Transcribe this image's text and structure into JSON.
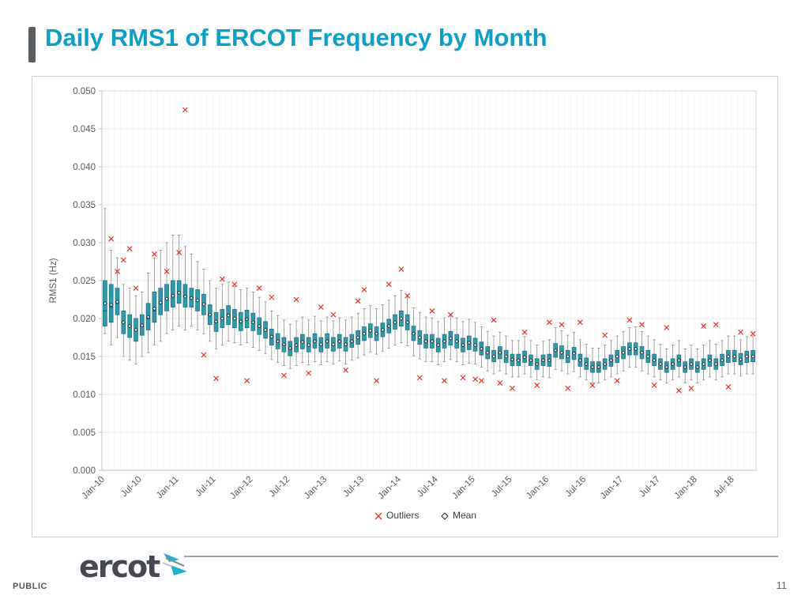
{
  "slide": {
    "title": "Daily RMS1 of ERCOT Frequency by Month",
    "footer_left": "PUBLIC",
    "page_number": "11",
    "logo_text": "ercot"
  },
  "colors": {
    "title": "#0d9fc6",
    "box_fill": "#2e9bae",
    "box_stroke": "#1f6f7d",
    "median": "#145c68",
    "whisker": "#8f8f8f",
    "outlier": "#e0352b",
    "grid": "#e5e5e5",
    "grid_vertical": "#f1f1f1",
    "axis": "#bfbfbf",
    "tick_text": "#595959",
    "mean_fill": "#ffffff",
    "mean_stroke": "#2b2b2b",
    "legend_text": "#404040"
  },
  "chart_data": {
    "type": "boxplot",
    "title": "",
    "xlabel": "",
    "ylabel": "RMS1 (Hz)",
    "ylim": [
      0,
      0.05
    ],
    "y_ticks": [
      "0.000",
      "0.005",
      "0.010",
      "0.015",
      "0.020",
      "0.025",
      "0.030",
      "0.035",
      "0.040",
      "0.045",
      "0.050"
    ],
    "x_tick_step": 6,
    "grid": true,
    "legend_position": "bottom-center",
    "legend": [
      {
        "label": "Outliers",
        "marker": "x"
      },
      {
        "label": "Mean",
        "marker": "diamond"
      }
    ],
    "months": [
      "Jan-10",
      "Feb-10",
      "Mar-10",
      "Apr-10",
      "May-10",
      "Jun-10",
      "Jul-10",
      "Aug-10",
      "Sep-10",
      "Oct-10",
      "Nov-10",
      "Dec-10",
      "Jan-11",
      "Feb-11",
      "Mar-11",
      "Apr-11",
      "May-11",
      "Jun-11",
      "Jul-11",
      "Aug-11",
      "Sep-11",
      "Oct-11",
      "Nov-11",
      "Dec-11",
      "Jan-12",
      "Feb-12",
      "Mar-12",
      "Apr-12",
      "May-12",
      "Jun-12",
      "Jul-12",
      "Aug-12",
      "Sep-12",
      "Oct-12",
      "Nov-12",
      "Dec-12",
      "Jan-13",
      "Feb-13",
      "Mar-13",
      "Apr-13",
      "May-13",
      "Jun-13",
      "Jul-13",
      "Aug-13",
      "Sep-13",
      "Oct-13",
      "Nov-13",
      "Dec-13",
      "Jan-14",
      "Feb-14",
      "Mar-14",
      "Apr-14",
      "May-14",
      "Jun-14",
      "Jul-14",
      "Aug-14",
      "Sep-14",
      "Oct-14",
      "Nov-14",
      "Dec-14",
      "Jan-15",
      "Feb-15",
      "Mar-15",
      "Apr-15",
      "May-15",
      "Jun-15",
      "Jul-15",
      "Aug-15",
      "Sep-15",
      "Oct-15",
      "Nov-15",
      "Dec-15",
      "Jan-16",
      "Feb-16",
      "Mar-16",
      "Apr-16",
      "May-16",
      "Jun-16",
      "Jul-16",
      "Aug-16",
      "Sep-16",
      "Oct-16",
      "Nov-16",
      "Dec-16",
      "Jan-17",
      "Feb-17",
      "Mar-17",
      "Apr-17",
      "May-17",
      "Jun-17",
      "Jul-17",
      "Aug-17",
      "Sep-17",
      "Oct-17",
      "Nov-17",
      "Dec-17",
      "Jan-18",
      "Feb-18",
      "Mar-18",
      "Apr-18",
      "May-18",
      "Jun-18",
      "Jul-18",
      "Aug-18",
      "Sep-18",
      "Oct-18"
    ],
    "box_format": [
      "low",
      "q1",
      "median",
      "q3",
      "high",
      "mean"
    ],
    "boxes": [
      [
        0.018,
        0.019,
        0.021,
        0.025,
        0.0345,
        0.022
      ],
      [
        0.0165,
        0.0195,
        0.0215,
        0.0245,
        0.029,
        0.0218
      ],
      [
        0.0175,
        0.0205,
        0.022,
        0.024,
        0.028,
        0.0222
      ],
      [
        0.015,
        0.018,
        0.0195,
        0.021,
        0.0245,
        0.0195
      ],
      [
        0.0145,
        0.0175,
        0.019,
        0.0205,
        0.024,
        0.019
      ],
      [
        0.014,
        0.017,
        0.0185,
        0.02,
        0.023,
        0.0185
      ],
      [
        0.015,
        0.0178,
        0.019,
        0.0205,
        0.0235,
        0.0191
      ],
      [
        0.0155,
        0.0185,
        0.02,
        0.022,
        0.026,
        0.0202
      ],
      [
        0.0165,
        0.0195,
        0.021,
        0.0235,
        0.028,
        0.0213
      ],
      [
        0.017,
        0.0205,
        0.022,
        0.024,
        0.029,
        0.0221
      ],
      [
        0.018,
        0.021,
        0.0225,
        0.0245,
        0.03,
        0.0226
      ],
      [
        0.0185,
        0.0215,
        0.023,
        0.025,
        0.031,
        0.023
      ],
      [
        0.019,
        0.022,
        0.0235,
        0.025,
        0.031,
        0.0234
      ],
      [
        0.0185,
        0.0215,
        0.023,
        0.0245,
        0.0295,
        0.0229
      ],
      [
        0.019,
        0.0215,
        0.0228,
        0.024,
        0.0285,
        0.0227
      ],
      [
        0.0185,
        0.021,
        0.0225,
        0.0238,
        0.0275,
        0.0224
      ],
      [
        0.018,
        0.0205,
        0.022,
        0.0232,
        0.0265,
        0.0219
      ],
      [
        0.017,
        0.0192,
        0.0205,
        0.0218,
        0.025,
        0.0205
      ],
      [
        0.016,
        0.0183,
        0.0195,
        0.0208,
        0.024,
        0.0196
      ],
      [
        0.0165,
        0.0188,
        0.02,
        0.0212,
        0.0245,
        0.02
      ],
      [
        0.017,
        0.0192,
        0.0205,
        0.0217,
        0.0248,
        0.0204
      ],
      [
        0.0168,
        0.0188,
        0.02,
        0.0212,
        0.0242,
        0.02
      ],
      [
        0.0165,
        0.0184,
        0.0196,
        0.0208,
        0.0238,
        0.0196
      ],
      [
        0.0168,
        0.0188,
        0.02,
        0.0211,
        0.024,
        0.0199
      ],
      [
        0.0162,
        0.0184,
        0.0195,
        0.0207,
        0.0235,
        0.0195
      ],
      [
        0.0158,
        0.0179,
        0.019,
        0.0201,
        0.0228,
        0.019
      ],
      [
        0.0154,
        0.0174,
        0.0185,
        0.0196,
        0.0222,
        0.0185
      ],
      [
        0.0146,
        0.0165,
        0.0175,
        0.0186,
        0.021,
        0.0176
      ],
      [
        0.0142,
        0.016,
        0.017,
        0.018,
        0.0204,
        0.017
      ],
      [
        0.0138,
        0.0156,
        0.0165,
        0.0175,
        0.0198,
        0.0166
      ],
      [
        0.0134,
        0.0151,
        0.016,
        0.017,
        0.0192,
        0.0161
      ],
      [
        0.0138,
        0.0156,
        0.0165,
        0.0175,
        0.0197,
        0.0165
      ],
      [
        0.0142,
        0.016,
        0.017,
        0.0179,
        0.0202,
        0.0169
      ],
      [
        0.0139,
        0.0156,
        0.0165,
        0.0175,
        0.0198,
        0.0165
      ],
      [
        0.0143,
        0.0161,
        0.017,
        0.018,
        0.0203,
        0.017
      ],
      [
        0.0139,
        0.0156,
        0.0165,
        0.0175,
        0.0197,
        0.0166
      ],
      [
        0.0143,
        0.0161,
        0.017,
        0.018,
        0.0202,
        0.017
      ],
      [
        0.014,
        0.0157,
        0.0165,
        0.0175,
        0.0197,
        0.0166
      ],
      [
        0.0144,
        0.0161,
        0.017,
        0.0179,
        0.0201,
        0.017
      ],
      [
        0.014,
        0.0157,
        0.0166,
        0.0175,
        0.0198,
        0.0166
      ],
      [
        0.0145,
        0.0162,
        0.017,
        0.0179,
        0.0202,
        0.017
      ],
      [
        0.0148,
        0.0166,
        0.0175,
        0.0184,
        0.0207,
        0.0175
      ],
      [
        0.0152,
        0.0171,
        0.018,
        0.0189,
        0.0213,
        0.018
      ],
      [
        0.0156,
        0.0175,
        0.0184,
        0.0193,
        0.0217,
        0.0184
      ],
      [
        0.0153,
        0.0171,
        0.018,
        0.0189,
        0.0213,
        0.018
      ],
      [
        0.0157,
        0.0176,
        0.0185,
        0.0194,
        0.0218,
        0.0185
      ],
      [
        0.0161,
        0.0181,
        0.019,
        0.0199,
        0.0224,
        0.019
      ],
      [
        0.0165,
        0.0186,
        0.0195,
        0.0205,
        0.023,
        0.0195
      ],
      [
        0.0168,
        0.019,
        0.02,
        0.021,
        0.0237,
        0.02
      ],
      [
        0.0164,
        0.0185,
        0.0195,
        0.0205,
        0.0231,
        0.0195
      ],
      [
        0.0151,
        0.0171,
        0.018,
        0.019,
        0.0214,
        0.018
      ],
      [
        0.0147,
        0.0166,
        0.0175,
        0.0184,
        0.0208,
        0.0175
      ],
      [
        0.0143,
        0.0161,
        0.017,
        0.0179,
        0.0202,
        0.017
      ],
      [
        0.0143,
        0.0161,
        0.017,
        0.0179,
        0.0201,
        0.017
      ],
      [
        0.0139,
        0.0156,
        0.0165,
        0.0174,
        0.0196,
        0.0165
      ],
      [
        0.0143,
        0.0161,
        0.017,
        0.0179,
        0.0201,
        0.017
      ],
      [
        0.0146,
        0.0165,
        0.0174,
        0.0183,
        0.0206,
        0.0174
      ],
      [
        0.0143,
        0.0161,
        0.017,
        0.0179,
        0.0201,
        0.017
      ],
      [
        0.0139,
        0.0156,
        0.0165,
        0.0174,
        0.0196,
        0.0165
      ],
      [
        0.0141,
        0.0159,
        0.0168,
        0.0177,
        0.0199,
        0.0168
      ],
      [
        0.014,
        0.0157,
        0.0165,
        0.0174,
        0.0195,
        0.0165
      ],
      [
        0.0136,
        0.0152,
        0.016,
        0.0169,
        0.0189,
        0.016
      ],
      [
        0.0131,
        0.0147,
        0.0155,
        0.0163,
        0.0183,
        0.0155
      ],
      [
        0.0127,
        0.0143,
        0.015,
        0.0158,
        0.0177,
        0.015
      ],
      [
        0.0131,
        0.0147,
        0.0155,
        0.0163,
        0.0182,
        0.0155
      ],
      [
        0.0127,
        0.0142,
        0.015,
        0.0158,
        0.0177,
        0.015
      ],
      [
        0.0123,
        0.0138,
        0.0145,
        0.0153,
        0.0171,
        0.0146
      ],
      [
        0.0123,
        0.0138,
        0.0145,
        0.0153,
        0.0171,
        0.0145
      ],
      [
        0.0127,
        0.0142,
        0.015,
        0.0157,
        0.0176,
        0.0149
      ],
      [
        0.0123,
        0.0138,
        0.0145,
        0.0152,
        0.0171,
        0.0145
      ],
      [
        0.0119,
        0.0133,
        0.014,
        0.0147,
        0.0165,
        0.014
      ],
      [
        0.0123,
        0.0138,
        0.0145,
        0.0152,
        0.017,
        0.0145
      ],
      [
        0.0122,
        0.0137,
        0.0145,
        0.0153,
        0.0172,
        0.0145
      ],
      [
        0.0133,
        0.0149,
        0.0158,
        0.0167,
        0.0188,
        0.0158
      ],
      [
        0.0131,
        0.0147,
        0.0155,
        0.0164,
        0.0184,
        0.0155
      ],
      [
        0.0127,
        0.0142,
        0.015,
        0.0158,
        0.0178,
        0.015
      ],
      [
        0.013,
        0.0146,
        0.0154,
        0.0162,
        0.0182,
        0.0154
      ],
      [
        0.0123,
        0.0137,
        0.0145,
        0.0153,
        0.0172,
        0.0145
      ],
      [
        0.0119,
        0.0133,
        0.014,
        0.0148,
        0.0166,
        0.014
      ],
      [
        0.0115,
        0.0129,
        0.0136,
        0.0143,
        0.0161,
        0.0136
      ],
      [
        0.0115,
        0.0129,
        0.0136,
        0.0143,
        0.0161,
        0.0136
      ],
      [
        0.0119,
        0.0133,
        0.014,
        0.0147,
        0.0165,
        0.014
      ],
      [
        0.0123,
        0.0137,
        0.0145,
        0.0152,
        0.0171,
        0.0145
      ],
      [
        0.0127,
        0.0142,
        0.015,
        0.0158,
        0.0177,
        0.015
      ],
      [
        0.0131,
        0.0147,
        0.0155,
        0.0163,
        0.0183,
        0.0155
      ],
      [
        0.0136,
        0.0152,
        0.016,
        0.0168,
        0.0188,
        0.016
      ],
      [
        0.0136,
        0.0152,
        0.016,
        0.0168,
        0.0189,
        0.016
      ],
      [
        0.0131,
        0.0147,
        0.0155,
        0.0163,
        0.0183,
        0.0155
      ],
      [
        0.0127,
        0.0142,
        0.015,
        0.0158,
        0.0177,
        0.015
      ],
      [
        0.0123,
        0.0138,
        0.0145,
        0.0153,
        0.0172,
        0.0145
      ],
      [
        0.0119,
        0.0133,
        0.014,
        0.0147,
        0.0166,
        0.014
      ],
      [
        0.0115,
        0.0129,
        0.0136,
        0.0143,
        0.016,
        0.0136
      ],
      [
        0.0119,
        0.0133,
        0.014,
        0.0147,
        0.0165,
        0.014
      ],
      [
        0.0123,
        0.0137,
        0.0145,
        0.0152,
        0.0171,
        0.0145
      ],
      [
        0.0115,
        0.0129,
        0.0136,
        0.0143,
        0.016,
        0.0136
      ],
      [
        0.0119,
        0.0133,
        0.014,
        0.0147,
        0.0165,
        0.014
      ],
      [
        0.0115,
        0.0129,
        0.0136,
        0.0143,
        0.016,
        0.0136
      ],
      [
        0.0119,
        0.0133,
        0.014,
        0.0147,
        0.0165,
        0.014
      ],
      [
        0.0123,
        0.0137,
        0.0145,
        0.0152,
        0.0171,
        0.0145
      ],
      [
        0.0119,
        0.0133,
        0.014,
        0.0147,
        0.0166,
        0.014
      ],
      [
        0.0123,
        0.0138,
        0.0145,
        0.0153,
        0.0171,
        0.0145
      ],
      [
        0.0127,
        0.0142,
        0.015,
        0.0158,
        0.0177,
        0.015
      ],
      [
        0.0127,
        0.0143,
        0.015,
        0.0158,
        0.0177,
        0.015
      ],
      [
        0.0124,
        0.0139,
        0.0146,
        0.0154,
        0.0172,
        0.0146
      ],
      [
        0.0127,
        0.0142,
        0.015,
        0.0157,
        0.0176,
        0.015
      ],
      [
        0.0127,
        0.0143,
        0.015,
        0.0158,
        0.0177,
        0.015
      ]
    ],
    "outliers": [
      [
        1,
        0.0305
      ],
      [
        2,
        0.0262
      ],
      [
        3,
        0.0277
      ],
      [
        4,
        0.0292
      ],
      [
        5,
        0.024
      ],
      [
        8,
        0.0285
      ],
      [
        10,
        0.0262
      ],
      [
        12,
        0.0287
      ],
      [
        13,
        0.0475
      ],
      [
        16,
        0.0152
      ],
      [
        18,
        0.0121
      ],
      [
        19,
        0.0252
      ],
      [
        21,
        0.0245
      ],
      [
        23,
        0.0118
      ],
      [
        25,
        0.024
      ],
      [
        27,
        0.0228
      ],
      [
        29,
        0.0125
      ],
      [
        31,
        0.0225
      ],
      [
        33,
        0.0128
      ],
      [
        35,
        0.0215
      ],
      [
        37,
        0.0205
      ],
      [
        39,
        0.0132
      ],
      [
        41,
        0.0223
      ],
      [
        42,
        0.0238
      ],
      [
        44,
        0.0118
      ],
      [
        46,
        0.0245
      ],
      [
        48,
        0.0265
      ],
      [
        49,
        0.023
      ],
      [
        51,
        0.0122
      ],
      [
        53,
        0.021
      ],
      [
        55,
        0.0118
      ],
      [
        56,
        0.0205
      ],
      [
        58,
        0.0122
      ],
      [
        60,
        0.012
      ],
      [
        61,
        0.0118
      ],
      [
        63,
        0.0198
      ],
      [
        64,
        0.0115
      ],
      [
        66,
        0.0108
      ],
      [
        68,
        0.0182
      ],
      [
        70,
        0.0112
      ],
      [
        72,
        0.0195
      ],
      [
        74,
        0.0192
      ],
      [
        75,
        0.0108
      ],
      [
        77,
        0.0195
      ],
      [
        79,
        0.0112
      ],
      [
        81,
        0.0178
      ],
      [
        83,
        0.0118
      ],
      [
        85,
        0.0198
      ],
      [
        87,
        0.0192
      ],
      [
        89,
        0.0112
      ],
      [
        91,
        0.0188
      ],
      [
        93,
        0.0105
      ],
      [
        95,
        0.0108
      ],
      [
        97,
        0.019
      ],
      [
        99,
        0.0192
      ],
      [
        101,
        0.011
      ],
      [
        103,
        0.0182
      ],
      [
        105,
        0.018
      ]
    ]
  }
}
